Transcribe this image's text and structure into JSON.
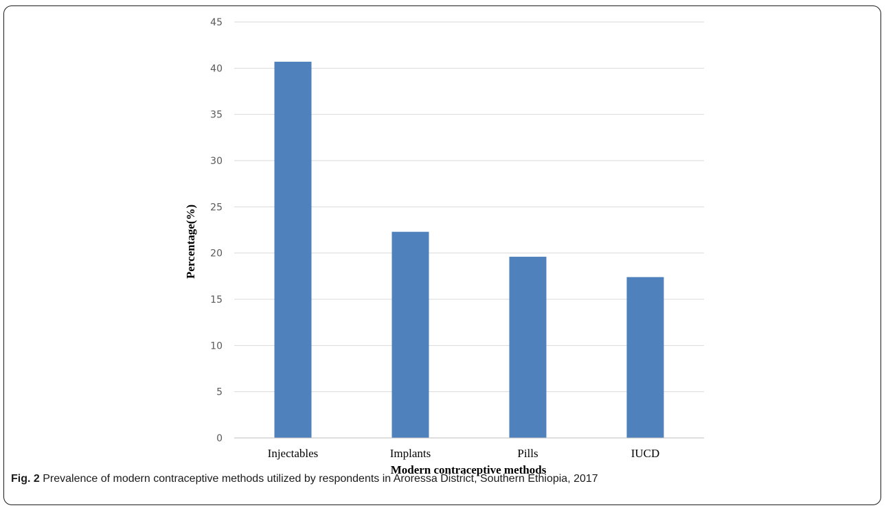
{
  "chart_data": {
    "type": "bar",
    "categories": [
      "Injectables",
      "Implants",
      "Pills",
      "IUCD"
    ],
    "values": [
      40.7,
      22.3,
      19.6,
      17.4
    ],
    "title": "",
    "xlabel": "Modern contraceptive methods",
    "ylabel": "Percentage(%)",
    "ylim": [
      0,
      45
    ],
    "yticks": [
      0,
      5,
      10,
      15,
      20,
      25,
      30,
      35,
      40,
      45
    ],
    "grid": true,
    "legend": "none",
    "bar_color": "#4f81bd"
  },
  "caption": {
    "label": "Fig. 2",
    "text": "Prevalence of modern contraceptive methods utilized by respondents in Aroressa District, Southern Ethiopia, 2017"
  }
}
